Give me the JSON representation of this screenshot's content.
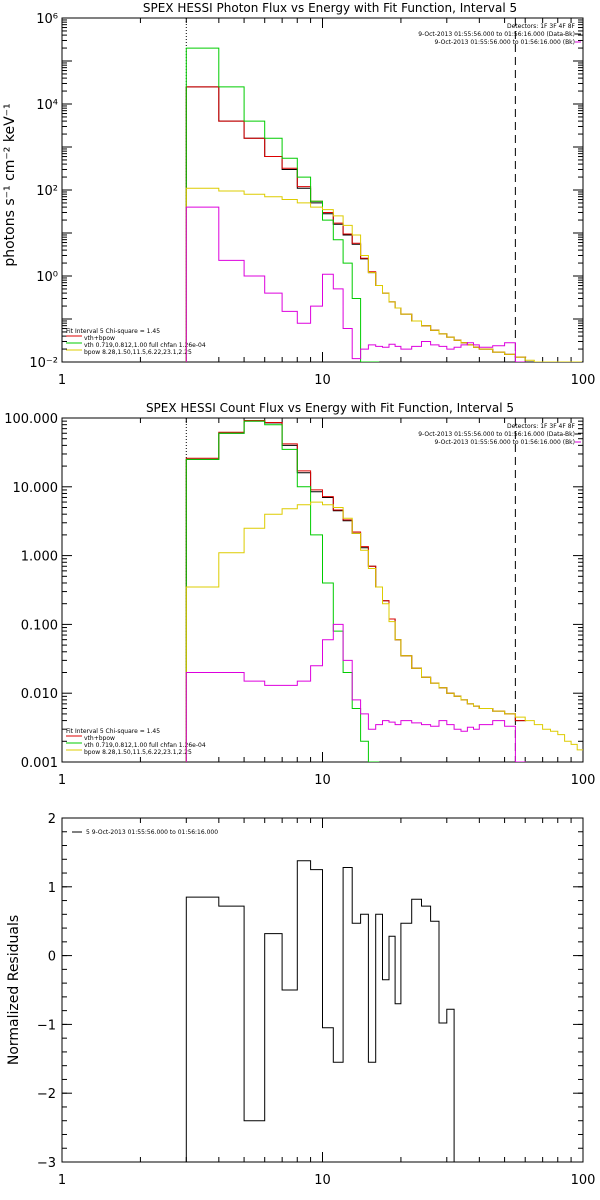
{
  "colors": {
    "total": "#000000",
    "fit_total": "#dd0000",
    "vth": "#00cc00",
    "bpow": "#ddcc00",
    "background": "#dd00dd"
  },
  "chart_data": [
    {
      "type": "line",
      "title": "SPEX HESSI Photon Flux vs Energy with Fit Function, Interval 5",
      "ylabel": "photons s⁻¹ cm⁻² keV⁻¹",
      "xscale": "log",
      "yscale": "log",
      "xlim": [
        1,
        100
      ],
      "ylim": [
        0.01,
        1000000
      ],
      "xticks": [
        "1",
        "10",
        "100"
      ],
      "yticks": [
        "10⁻²",
        "10⁰",
        "10²",
        "10⁴",
        "10⁶"
      ],
      "vlines": [
        3,
        55
      ],
      "legend_topright": [
        "Detectors: 1F 3F 4F 8F",
        "9-Oct-2013 01:55:56.000 to 01:56:16.000 (Data-Bk)",
        "9-Oct-2013 01:55:56.000 to 01:56:16.000 (Bk)"
      ],
      "legend_bottomleft": [
        "Fit Interval 5   Chi-square = 1.45",
        "vth+bpow",
        "vth 0.719,0.812,1.00   full chfan 1.26e-04",
        "bpow 8.28,1.50,11.5,6.22,23.1,2.25"
      ],
      "series": [
        {
          "name": "Data-Bk",
          "color_key": "total",
          "x": [
            3,
            3.5,
            4,
            4.5,
            5,
            5.5,
            6,
            6.5,
            7,
            7.5,
            8,
            8.5,
            9,
            9.5,
            10,
            10.5,
            11,
            11.5,
            12,
            12.5,
            13,
            14,
            15,
            16,
            17,
            18,
            19,
            20,
            22,
            24,
            26,
            28,
            30,
            32,
            34,
            36,
            38,
            40,
            45,
            50,
            55
          ],
          "y": [
            25000,
            25000,
            4000,
            4000,
            1600,
            1600,
            600,
            600,
            300,
            300,
            110,
            110,
            50,
            50,
            28,
            28,
            16,
            16,
            9,
            9,
            5.5,
            2.5,
            1.2,
            0.6,
            0.4,
            0.25,
            0.18,
            0.13,
            0.09,
            0.07,
            0.055,
            0.045,
            0.038,
            0.032,
            0.028,
            0.025,
            0.022,
            0.02,
            0.017,
            0.015,
            0.013
          ]
        },
        {
          "name": "vth+bpow",
          "color_key": "fit_total",
          "x": [
            3,
            3.5,
            4,
            4.5,
            5,
            5.5,
            6,
            6.5,
            7,
            7.5,
            8,
            8.5,
            9,
            9.5,
            10,
            10.5,
            11,
            11.5,
            12,
            12.5,
            13,
            14,
            15,
            16,
            17,
            18,
            19,
            20,
            22,
            24,
            26,
            28,
            30,
            32,
            34,
            36,
            38,
            40,
            45,
            50,
            55
          ],
          "y": [
            25000,
            25000,
            4000,
            4000,
            1600,
            1600,
            600,
            600,
            320,
            320,
            120,
            120,
            55,
            55,
            30,
            30,
            17,
            17,
            9.5,
            9.5,
            5.8,
            2.6,
            1.25,
            0.6,
            0.4,
            0.25,
            0.18,
            0.13,
            0.09,
            0.07,
            0.055,
            0.045,
            0.038,
            0.032,
            0.028,
            0.025,
            0.022,
            0.02,
            0.017,
            0.015,
            0.013
          ]
        },
        {
          "name": "vth",
          "color_key": "vth",
          "x": [
            3,
            4,
            5,
            6,
            7,
            8,
            9,
            10,
            11,
            12,
            13,
            14,
            15
          ],
          "y": [
            200000,
            25000,
            4000,
            1600,
            550,
            200,
            55,
            20,
            7,
            2,
            0.3,
            0.01,
            0.001
          ]
        },
        {
          "name": "bpow",
          "color_key": "bpow",
          "x": [
            3,
            3.5,
            4,
            4.5,
            5,
            5.5,
            6,
            6.5,
            7,
            7.5,
            8,
            8.5,
            9,
            9.5,
            10,
            10.5,
            11,
            11.5,
            12,
            12.5,
            13,
            14,
            15,
            16,
            17,
            18,
            19,
            20,
            22,
            24,
            26,
            28,
            30,
            32,
            34,
            36,
            38,
            40,
            45,
            50,
            55,
            60,
            65,
            70,
            75,
            80,
            85,
            90
          ],
          "y": [
            110,
            110,
            95,
            95,
            80,
            80,
            70,
            70,
            60,
            60,
            50,
            50,
            40,
            40,
            35,
            35,
            25,
            25,
            15,
            15,
            9,
            3,
            1.2,
            0.6,
            0.4,
            0.25,
            0.18,
            0.13,
            0.09,
            0.07,
            0.055,
            0.045,
            0.038,
            0.032,
            0.028,
            0.025,
            0.022,
            0.02,
            0.017,
            0.015,
            0.013,
            0.011,
            0.009,
            0.008,
            0.007,
            0.006,
            0.005,
            0.004
          ]
        },
        {
          "name": "Bk",
          "color_key": "background",
          "x": [
            3,
            3.5,
            4,
            4.5,
            5,
            5.5,
            6,
            6.5,
            7,
            7.5,
            8,
            8.5,
            9,
            9.5,
            10,
            10.5,
            11,
            11.5,
            12,
            12.5,
            13,
            14,
            15,
            16,
            17,
            18,
            19,
            20,
            22,
            24,
            26,
            28,
            30,
            32,
            34,
            36,
            38,
            40,
            45,
            50,
            55
          ],
          "y": [
            40,
            40,
            2.3,
            2.3,
            1,
            1,
            0.4,
            0.4,
            0.15,
            0.15,
            0.08,
            0.08,
            0.2,
            0.2,
            1.1,
            1.1,
            0.5,
            0.5,
            0.06,
            0.06,
            0.012,
            0.02,
            0.025,
            0.023,
            0.022,
            0.026,
            0.023,
            0.02,
            0.023,
            0.03,
            0.025,
            0.023,
            0.02,
            0.022,
            0.025,
            0.028,
            0.025,
            0.022,
            0.024,
            0.028,
            0.01
          ]
        }
      ]
    },
    {
      "type": "line",
      "title": "SPEX HESSI Count Flux vs Energy with Fit Function, Interval 5",
      "ylabel": "",
      "xscale": "log",
      "yscale": "log",
      "xlim": [
        1,
        100
      ],
      "ylim": [
        0.001,
        100
      ],
      "xticks": [
        "1",
        "10",
        "100"
      ],
      "yticks": [
        "0.001",
        "0.010",
        "0.100",
        "1.000",
        "10.000",
        "100.000"
      ],
      "vlines": [
        3,
        55
      ],
      "legend_topright": [
        "Detectors: 1F 3F 4F 8F",
        "9-Oct-2013 01:55:56.000 to 01:56:16.000 (Data-Bk)",
        "9-Oct-2013 01:55:56.000 to 01:56:16.000 (Bk)"
      ],
      "legend_bottomleft": [
        "Fit Interval 5   Chi-square = 1.45",
        "vth+bpow",
        "vth 0.719,0.812,1.00   full chfan 1.26e-04",
        "bpow 8.28,1.50,11.5,6.22,23.1,2.25"
      ],
      "series": [
        {
          "name": "Data-Bk",
          "color_key": "total",
          "x": [
            3,
            4,
            5,
            6,
            7,
            8,
            9,
            10,
            11,
            12,
            13,
            14,
            15,
            16,
            17,
            18,
            19,
            20,
            22,
            24,
            26,
            28,
            30,
            32,
            34,
            36,
            38,
            40,
            45,
            50,
            55
          ],
          "y": [
            25,
            60,
            90,
            85,
            40,
            16,
            8.5,
            7,
            4.5,
            3.2,
            2.1,
            1.3,
            0.7,
            0.35,
            0.22,
            0.12,
            0.06,
            0.035,
            0.023,
            0.017,
            0.014,
            0.012,
            0.01,
            0.009,
            0.008,
            0.007,
            0.0065,
            0.006,
            0.0055,
            0.005,
            0.004
          ]
        },
        {
          "name": "vth+bpow",
          "color_key": "fit_total",
          "x": [
            3,
            4,
            5,
            6,
            7,
            8,
            9,
            10,
            11,
            12,
            13,
            14,
            15,
            16,
            17,
            18,
            19,
            20,
            22,
            24,
            26,
            28,
            30,
            32,
            34,
            36,
            38,
            40,
            45,
            50,
            55
          ],
          "y": [
            26,
            62,
            92,
            86,
            42,
            17,
            9,
            7.2,
            4.6,
            3.3,
            2.2,
            1.35,
            0.7,
            0.35,
            0.22,
            0.12,
            0.06,
            0.035,
            0.023,
            0.017,
            0.014,
            0.012,
            0.01,
            0.009,
            0.008,
            0.007,
            0.0065,
            0.006,
            0.0055,
            0.005,
            0.004
          ]
        },
        {
          "name": "vth",
          "color_key": "vth",
          "x": [
            3,
            4,
            5,
            6,
            7,
            8,
            9,
            10,
            11,
            12,
            13,
            14,
            15
          ],
          "y": [
            25,
            60,
            90,
            80,
            35,
            10,
            2,
            0.4,
            0.08,
            0.02,
            0.006,
            0.002,
            0.001
          ]
        },
        {
          "name": "bpow",
          "color_key": "bpow",
          "x": [
            3,
            3.5,
            4,
            4.5,
            5,
            5.5,
            6,
            6.5,
            7,
            7.5,
            8,
            8.5,
            9,
            9.5,
            10,
            11,
            12,
            13,
            14,
            15,
            16,
            17,
            18,
            19,
            20,
            22,
            24,
            26,
            28,
            30,
            32,
            34,
            36,
            38,
            40,
            45,
            50,
            55,
            60,
            65,
            70,
            75,
            80,
            85,
            90,
            95
          ],
          "y": [
            0.35,
            0.35,
            1.1,
            1.1,
            2.5,
            2.5,
            4,
            4,
            4.8,
            4.8,
            5.5,
            5.5,
            6,
            6,
            5.5,
            5,
            3.5,
            2.1,
            1.2,
            0.65,
            0.35,
            0.2,
            0.11,
            0.06,
            0.035,
            0.023,
            0.017,
            0.014,
            0.012,
            0.01,
            0.009,
            0.008,
            0.007,
            0.0065,
            0.006,
            0.0055,
            0.005,
            0.0045,
            0.004,
            0.0035,
            0.003,
            0.0028,
            0.0025,
            0.002,
            0.0018,
            0.0015
          ]
        },
        {
          "name": "Bk",
          "color_key": "background",
          "x": [
            3,
            4,
            5,
            6,
            7,
            8,
            9,
            10,
            11,
            12,
            13,
            14,
            15,
            16,
            17,
            18,
            19,
            20,
            22,
            24,
            26,
            28,
            30,
            32,
            34,
            36,
            38,
            40,
            45,
            50,
            55
          ],
          "y": [
            0.02,
            0.02,
            0.015,
            0.013,
            0.013,
            0.015,
            0.025,
            0.06,
            0.1,
            0.03,
            0.008,
            0.005,
            0.003,
            0.0035,
            0.004,
            0.0038,
            0.0035,
            0.004,
            0.0037,
            0.0035,
            0.0033,
            0.004,
            0.0035,
            0.003,
            0.0028,
            0.0032,
            0.003,
            0.0035,
            0.004,
            0.0033,
            0.001
          ]
        }
      ]
    },
    {
      "type": "line",
      "title": "",
      "ylabel": "Normalized Residuals",
      "xscale": "log",
      "yscale": "linear",
      "xlim": [
        1,
        100
      ],
      "ylim": [
        -3,
        2
      ],
      "xticks": [
        "1",
        "10",
        "100"
      ],
      "yticks": [
        "−3",
        "−2",
        "−1",
        "0",
        "1",
        "2"
      ],
      "legend": "5  9-Oct-2013 01:55:56.000 to 01:56:16.000",
      "series": [
        {
          "name": "5",
          "color_key": "total",
          "x": [
            3,
            3.5,
            4,
            4.5,
            5,
            5.5,
            6,
            6.5,
            7,
            7.5,
            8,
            8.5,
            9,
            9.5,
            10,
            10.5,
            11,
            11.5,
            12,
            12.5,
            13,
            14,
            15,
            16,
            17,
            18,
            19,
            20,
            22,
            24,
            26,
            28,
            30,
            32,
            34,
            36,
            38,
            40,
            45,
            50,
            55
          ],
          "y": [
            0.85,
            0.85,
            0.72,
            0.72,
            -2.4,
            -2.4,
            0.32,
            0.32,
            -0.5,
            -0.5,
            1.38,
            1.38,
            1.25,
            1.25,
            -1.05,
            -1.05,
            -1.55,
            -1.55,
            1.28,
            1.28,
            0.47,
            0.6,
            -1.55,
            0.6,
            -0.35,
            0.28,
            -0.7,
            0.47,
            0.82,
            0.72,
            0.5,
            -0.98,
            -0.78,
            -3,
            -3,
            -3,
            -3,
            -3,
            -3,
            -3,
            -3
          ]
        }
      ]
    }
  ]
}
